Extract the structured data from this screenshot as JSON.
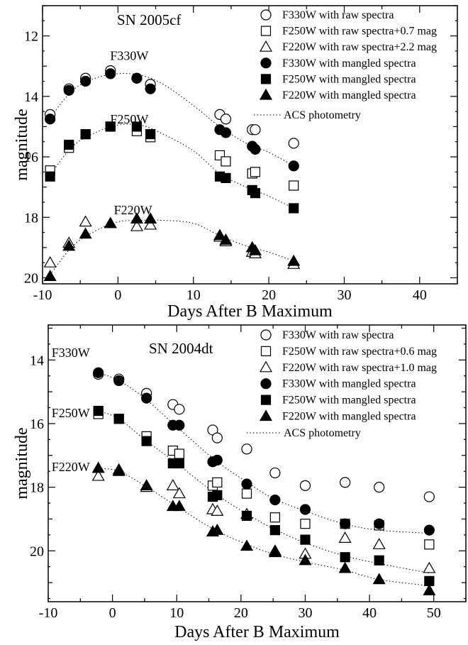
{
  "chart_data": [
    {
      "type": "scatter",
      "title": "SN 2005cf",
      "xlabel": "Days After B Maximum",
      "ylabel": "magnitude",
      "xlim": [
        -10,
        45
      ],
      "ylim": [
        20.2,
        11.0
      ],
      "y_inverted": true,
      "xticks": [
        -10,
        0,
        10,
        20,
        30,
        40
      ],
      "yticks": [
        12,
        14,
        16,
        18,
        20
      ],
      "band_labels": [
        {
          "text": "F330W",
          "x": 1.5,
          "y": 12.8
        },
        {
          "text": "F250W",
          "x": 1.5,
          "y": 14.9
        },
        {
          "text": "F220W",
          "x": 2.0,
          "y": 17.9
        }
      ],
      "annotation": {
        "text": "ACS photometry"
      },
      "legend_position": "top-right",
      "series": [
        {
          "name": "F330W with raw spectra",
          "marker": "circle-open",
          "x": [
            -9,
            -6.5,
            -4.3,
            -1,
            2.5,
            4.3,
            13.5,
            14.3,
            17.8,
            18.2,
            23.3
          ],
          "y": [
            14.6,
            13.75,
            13.4,
            13.15,
            13.4,
            13.6,
            14.6,
            14.75,
            15.1,
            15.1,
            15.55
          ]
        },
        {
          "name": "F250W with raw spectra+0.7 mag",
          "marker": "square-open",
          "x": [
            -9,
            -6.5,
            -4.3,
            -1,
            2.5,
            4.3,
            13.5,
            14.3,
            17.8,
            18.2,
            23.3
          ],
          "y": [
            16.45,
            15.7,
            15.25,
            15.0,
            15.15,
            15.35,
            15.95,
            16.15,
            16.55,
            16.5,
            16.95
          ]
        },
        {
          "name": "F220W with raw spectra+2.2 mag",
          "marker": "triangle-open",
          "x": [
            -9,
            -6.5,
            -4.3,
            -1,
            2.5,
            4.3,
            13.5,
            14.3,
            17.8,
            18.2,
            23.3
          ],
          "y": [
            19.5,
            18.85,
            18.15,
            18.2,
            18.3,
            18.25,
            18.65,
            18.8,
            19.15,
            19.2,
            19.55
          ]
        },
        {
          "name": "F330W with mangled spectra",
          "marker": "circle-filled",
          "x": [
            -9,
            -6.5,
            -4.3,
            -1,
            2.5,
            4.3,
            13.5,
            14.3,
            17.8,
            18.2,
            23.3
          ],
          "y": [
            14.75,
            13.8,
            13.5,
            13.25,
            13.4,
            13.75,
            15.1,
            15.2,
            15.65,
            15.75,
            16.3
          ]
        },
        {
          "name": "F250W with mangled spectra",
          "marker": "square-filled",
          "x": [
            -9,
            -6.5,
            -4.3,
            -1,
            2.5,
            4.3,
            13.5,
            14.3,
            17.8,
            18.2,
            23.3
          ],
          "y": [
            16.65,
            15.6,
            15.25,
            15.0,
            15.0,
            15.25,
            16.65,
            16.7,
            17.1,
            17.2,
            17.7
          ]
        },
        {
          "name": "F220W with mangled spectra",
          "marker": "triangle-filled",
          "x": [
            -9,
            -6.5,
            -4.3,
            -1,
            2.5,
            4.3,
            13.5,
            14.3,
            17.8,
            18.2,
            23.3
          ],
          "y": [
            19.95,
            18.95,
            18.55,
            18.2,
            18.05,
            18.05,
            18.6,
            18.75,
            19.0,
            19.1,
            19.45
          ]
        }
      ],
      "curves": [
        {
          "x": [
            -9,
            -6,
            -3,
            0,
            3,
            6,
            10,
            13.5,
            17,
            20,
            23.3
          ],
          "y": [
            14.7,
            13.8,
            13.4,
            13.25,
            13.3,
            13.6,
            14.3,
            15.0,
            15.55,
            15.85,
            16.3
          ]
        },
        {
          "x": [
            -9,
            -6,
            -3,
            0,
            3,
            6,
            10,
            13.5,
            17,
            20,
            23.3
          ],
          "y": [
            16.6,
            15.65,
            15.2,
            14.95,
            14.95,
            15.25,
            15.8,
            16.55,
            17.0,
            17.3,
            17.7
          ]
        },
        {
          "x": [
            -9,
            -6,
            -3,
            0,
            3,
            6,
            10,
            13.5,
            17,
            20,
            23.3
          ],
          "y": [
            19.9,
            18.95,
            18.45,
            18.15,
            18.1,
            18.1,
            18.2,
            18.6,
            18.95,
            19.15,
            19.45
          ]
        }
      ]
    },
    {
      "type": "scatter",
      "title": "SN 2004dt",
      "xlabel": "Days After B Maximum",
      "ylabel": "magnitude",
      "xlim": [
        -10,
        55
      ],
      "ylim": [
        21.6,
        12.9
      ],
      "y_inverted": true,
      "xticks": [
        -10,
        0,
        10,
        20,
        30,
        40,
        50
      ],
      "yticks": [
        14,
        16,
        18,
        20
      ],
      "band_labels": [
        {
          "text": "F330W",
          "x": -6.5,
          "y": 13.9
        },
        {
          "text": "F250W",
          "x": -6.5,
          "y": 15.8
        },
        {
          "text": "F220W",
          "x": -6.5,
          "y": 17.5
        }
      ],
      "annotation": {
        "text": "ACS photometry"
      },
      "legend_position": "top-right",
      "series": [
        {
          "name": "F330W with raw spectra",
          "marker": "circle-open",
          "x": [
            -2.2,
            1.0,
            5.3,
            9.4,
            10.4,
            15.6,
            16.3,
            20.9,
            25.3,
            30.0,
            36.2,
            41.5,
            49.3
          ],
          "y": [
            14.45,
            14.6,
            15.05,
            15.4,
            15.55,
            16.2,
            16.45,
            16.8,
            17.55,
            17.95,
            17.85,
            18.0,
            18.3
          ]
        },
        {
          "name": "F250W with raw spectra+0.6 mag",
          "marker": "square-open",
          "x": [
            -2.2,
            1.0,
            5.3,
            9.4,
            10.4,
            15.6,
            16.3,
            20.9,
            25.3,
            30.0,
            36.2,
            41.5,
            49.3
          ],
          "y": [
            15.7,
            15.85,
            16.4,
            16.85,
            16.95,
            17.95,
            17.85,
            18.2,
            18.95,
            19.15,
            19.15,
            19.2,
            19.8
          ]
        },
        {
          "name": "F220W with raw spectra+1.0 mag",
          "marker": "triangle-open",
          "x": [
            -2.2,
            1.0,
            5.3,
            9.4,
            10.4,
            15.6,
            16.3,
            20.9,
            25.3,
            30.0,
            36.2,
            41.5,
            49.3
          ],
          "y": [
            17.65,
            17.45,
            18.0,
            17.95,
            18.2,
            18.7,
            18.75,
            18.85,
            20.0,
            20.1,
            19.6,
            19.8,
            20.55
          ]
        },
        {
          "name": "F330W with mangled spectra",
          "marker": "circle-filled",
          "x": [
            -2.2,
            1.0,
            5.3,
            9.4,
            10.4,
            15.6,
            16.3,
            20.9,
            25.3,
            30.0,
            36.2,
            41.5,
            49.3
          ],
          "y": [
            14.4,
            14.65,
            15.2,
            16.05,
            16.05,
            17.2,
            17.15,
            17.9,
            18.4,
            18.7,
            19.15,
            19.15,
            19.35
          ]
        },
        {
          "name": "F250W with mangled spectra",
          "marker": "square-filled",
          "x": [
            -2.2,
            1.0,
            5.3,
            9.4,
            10.4,
            15.6,
            16.3,
            20.9,
            25.3,
            30.0,
            36.2,
            41.5,
            49.3
          ],
          "y": [
            15.6,
            15.85,
            16.55,
            17.25,
            17.25,
            18.3,
            18.25,
            18.9,
            19.35,
            19.65,
            20.2,
            20.3,
            20.95
          ]
        },
        {
          "name": "F220W with mangled spectra",
          "marker": "triangle-filled",
          "x": [
            -2.2,
            1.0,
            5.3,
            9.4,
            10.4,
            15.6,
            16.3,
            20.9,
            25.3,
            30.0,
            36.2,
            41.5,
            49.3
          ],
          "y": [
            17.4,
            17.5,
            17.95,
            18.6,
            18.6,
            19.4,
            19.35,
            19.85,
            20.05,
            20.3,
            20.55,
            20.9,
            21.25
          ]
        }
      ],
      "curves": [
        {
          "x": [
            -2.2,
            1,
            5,
            10,
            16,
            21,
            25,
            30,
            36,
            41.5,
            49.3
          ],
          "y": [
            14.4,
            14.65,
            15.2,
            16.1,
            17.15,
            17.85,
            18.35,
            18.75,
            19.15,
            19.35,
            19.45
          ]
        },
        {
          "x": [
            -2.2,
            1,
            5,
            10,
            16,
            21,
            25,
            30,
            36,
            41.5,
            49.3
          ],
          "y": [
            15.6,
            15.85,
            16.5,
            17.25,
            18.2,
            18.85,
            19.3,
            19.75,
            20.15,
            20.4,
            20.7
          ]
        },
        {
          "x": [
            -2.2,
            1,
            5,
            10,
            16,
            21,
            25,
            30,
            36,
            41.5,
            49.3
          ],
          "y": [
            17.4,
            17.5,
            17.95,
            18.6,
            19.35,
            19.8,
            20.1,
            20.35,
            20.6,
            20.9,
            21.1
          ]
        }
      ]
    }
  ]
}
